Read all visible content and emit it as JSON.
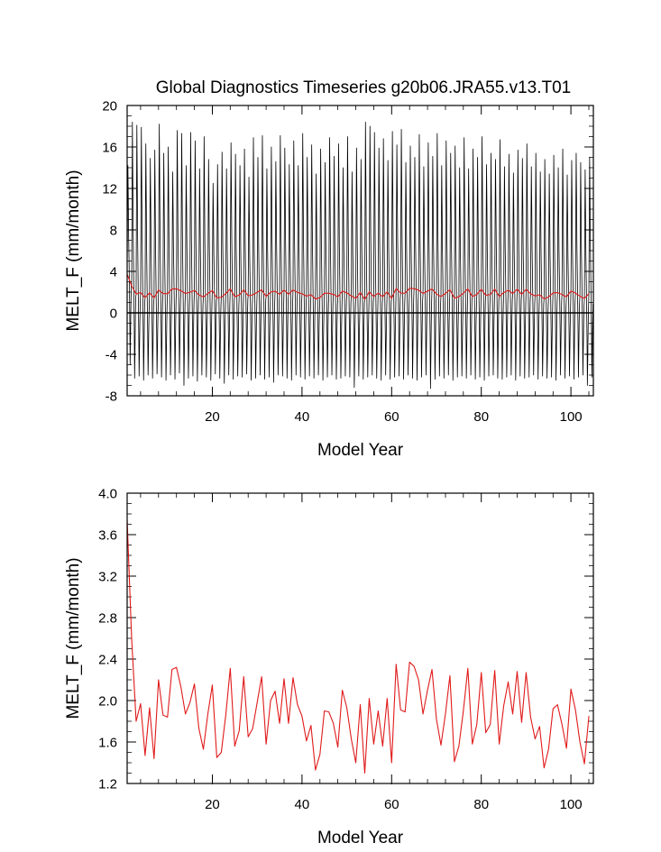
{
  "title": "Global Diagnostics Timeseries g20b06.JRA55.v13.T01",
  "chart_data": [
    {
      "type": "line",
      "title": "Global Diagnostics Timeseries g20b06.JRA55.v13.T01",
      "xlabel": "Model Year",
      "ylabel": "MELT_F (mm/month)",
      "xlim": [
        1,
        105
      ],
      "ylim": [
        -8,
        20
      ],
      "x_ticks": [
        20,
        40,
        60,
        80,
        100
      ],
      "y_ticks": [
        -8,
        -4,
        0,
        4,
        8,
        12,
        16,
        20
      ],
      "y_tick_labels": [
        "-8",
        "-4",
        "0",
        "4",
        "8",
        "12",
        "16",
        "20"
      ],
      "zero_line": true,
      "monthly_peaks": [
        14.2,
        18.4,
        18.1,
        17.9,
        16.3,
        14.9,
        15.7,
        18.2,
        15.4,
        16.0,
        13.6,
        17.6,
        17.3,
        14.2,
        17.4,
        16.6,
        13.9,
        17.0,
        14.8,
        12.5,
        14.3,
        15.5,
        13.9,
        16.4,
        15.3,
        14.2,
        15.8,
        13.1,
        16.9,
        15.0,
        17.1,
        13.9,
        16.0,
        14.6,
        17.1,
        15.9,
        14.3,
        16.6,
        14.2,
        17.3,
        15.0,
        16.2,
        13.4,
        15.8,
        14.5,
        16.9,
        15.1,
        16.3,
        14.0,
        17.0,
        13.6,
        15.9,
        14.8,
        18.4,
        18.0,
        17.4,
        15.9,
        16.8,
        14.7,
        17.5,
        16.2,
        17.7,
        14.5,
        16.1,
        15.0,
        17.2,
        14.1,
        16.4,
        15.1,
        17.3,
        14.2,
        16.6,
        15.4,
        16.1,
        14.0,
        16.9,
        13.9,
        15.8,
        15.0,
        17.0,
        14.3,
        15.4,
        14.8,
        16.7,
        14.1,
        15.3,
        13.5,
        15.7,
        14.9,
        16.3,
        14.1,
        15.4,
        13.6,
        14.8,
        13.4,
        15.2,
        14.0,
        15.8,
        13.3,
        14.7,
        15.4,
        14.5,
        13.8,
        15.0
      ],
      "monthly_troughs": [
        -5.0,
        -6.3,
        -6.1,
        -6.5,
        -6.0,
        -6.3,
        -5.9,
        -6.2,
        -6.5,
        -6.0,
        -6.4,
        -5.8,
        -7.0,
        -6.3,
        -6.1,
        -6.6,
        -6.0,
        -6.2,
        -6.5,
        -5.9,
        -6.3,
        -6.8,
        -6.0,
        -6.4,
        -6.1,
        -6.2,
        -5.9,
        -6.5,
        -6.3,
        -6.0,
        -6.4,
        -6.2,
        -6.7,
        -6.0,
        -6.1,
        -6.3,
        -6.5,
        -6.0,
        -6.2,
        -6.4,
        -6.1,
        -6.3,
        -6.0,
        -6.5,
        -6.2,
        -6.0,
        -6.4,
        -6.3,
        -6.1,
        -6.2,
        -7.2,
        -6.1,
        -6.4,
        -6.2,
        -6.0,
        -6.3,
        -6.5,
        -6.0,
        -6.4,
        -6.2,
        -6.1,
        -6.4,
        -6.0,
        -6.3,
        -6.5,
        -6.2,
        -6.0,
        -7.3,
        -6.4,
        -6.1,
        -6.3,
        -6.0,
        -6.5,
        -6.2,
        -6.1,
        -6.3,
        -6.0,
        -6.4,
        -6.2,
        -6.5,
        -6.1,
        -6.0,
        -6.3,
        -6.4,
        -6.2,
        -6.0,
        -6.5,
        -6.1,
        -6.3,
        -6.2,
        -6.0,
        -6.4,
        -6.1,
        -6.3,
        -6.2,
        -6.5,
        -6.0,
        -6.3,
        -6.1,
        -6.4,
        -6.2,
        -6.0,
        -7.0,
        -6.2
      ],
      "series": [
        {
          "color": "#e01a1a",
          "x": [
            1,
            2,
            3,
            4,
            5,
            6,
            7,
            8,
            9,
            10,
            11,
            12,
            13,
            14,
            15,
            16,
            17,
            18,
            19,
            20,
            21,
            22,
            23,
            24,
            25,
            26,
            27,
            28,
            29,
            30,
            31,
            32,
            33,
            34,
            35,
            36,
            37,
            38,
            39,
            40,
            41,
            42,
            43,
            44,
            45,
            46,
            47,
            48,
            49,
            50,
            51,
            52,
            53,
            54,
            55,
            56,
            57,
            58,
            59,
            60,
            61,
            62,
            63,
            64,
            65,
            66,
            67,
            68,
            69,
            70,
            71,
            72,
            73,
            74,
            75,
            76,
            77,
            78,
            79,
            80,
            81,
            82,
            83,
            84,
            85,
            86,
            87,
            88,
            89,
            90,
            91,
            92,
            93,
            94,
            95,
            96,
            97,
            98,
            99,
            100,
            101,
            102,
            103,
            104
          ],
          "values": [
            3.74,
            2.6,
            1.8,
            1.97,
            1.47,
            1.93,
            1.44,
            2.2,
            1.86,
            1.84,
            2.3,
            2.32,
            2.13,
            1.87,
            1.98,
            2.16,
            1.73,
            1.53,
            1.87,
            2.15,
            1.45,
            1.5,
            1.86,
            2.31,
            1.56,
            1.71,
            2.23,
            1.65,
            1.73,
            1.98,
            2.23,
            1.58,
            2.0,
            2.09,
            1.78,
            2.21,
            1.78,
            2.22,
            1.96,
            1.85,
            1.61,
            1.76,
            1.33,
            1.48,
            1.9,
            1.89,
            1.78,
            1.55,
            2.1,
            1.93,
            1.63,
            1.4,
            1.96,
            1.3,
            2.02,
            1.58,
            1.9,
            1.56,
            2.02,
            1.4,
            2.35,
            1.91,
            1.89,
            2.37,
            2.33,
            2.2,
            1.87,
            2.1,
            2.3,
            1.82,
            1.57,
            1.87,
            2.24,
            1.41,
            1.56,
            1.9,
            2.31,
            1.58,
            1.77,
            2.27,
            1.69,
            1.77,
            2.29,
            1.58,
            1.95,
            2.18,
            1.87,
            2.28,
            1.79,
            2.27,
            1.84,
            1.63,
            1.75,
            1.35,
            1.53,
            1.92,
            1.96,
            1.77,
            1.54,
            2.11,
            1.91,
            1.6,
            1.39,
            1.85
          ]
        }
      ]
    },
    {
      "type": "line",
      "xlabel": "Model Year",
      "ylabel": "MELT_F (mm/month)",
      "xlim": [
        1,
        105
      ],
      "ylim": [
        1.2,
        4.0
      ],
      "x_ticks": [
        20,
        40,
        60,
        80,
        100
      ],
      "y_ticks": [
        1.2,
        1.6,
        2.0,
        2.4,
        2.8,
        3.2,
        3.6,
        4.0
      ],
      "y_tick_labels": [
        "1.2",
        "1.6",
        "2.0",
        "2.4",
        "2.8",
        "3.2",
        "3.6",
        "4.0"
      ],
      "series": [
        {
          "color": "#e01a1a",
          "x": [
            1,
            2,
            3,
            4,
            5,
            6,
            7,
            8,
            9,
            10,
            11,
            12,
            13,
            14,
            15,
            16,
            17,
            18,
            19,
            20,
            21,
            22,
            23,
            24,
            25,
            26,
            27,
            28,
            29,
            30,
            31,
            32,
            33,
            34,
            35,
            36,
            37,
            38,
            39,
            40,
            41,
            42,
            43,
            44,
            45,
            46,
            47,
            48,
            49,
            50,
            51,
            52,
            53,
            54,
            55,
            56,
            57,
            58,
            59,
            60,
            61,
            62,
            63,
            64,
            65,
            66,
            67,
            68,
            69,
            70,
            71,
            72,
            73,
            74,
            75,
            76,
            77,
            78,
            79,
            80,
            81,
            82,
            83,
            84,
            85,
            86,
            87,
            88,
            89,
            90,
            91,
            92,
            93,
            94,
            95,
            96,
            97,
            98,
            99,
            100,
            101,
            102,
            103,
            104
          ],
          "values": [
            3.74,
            2.6,
            1.8,
            1.97,
            1.47,
            1.93,
            1.44,
            2.2,
            1.86,
            1.84,
            2.3,
            2.32,
            2.13,
            1.87,
            1.98,
            2.16,
            1.73,
            1.53,
            1.87,
            2.15,
            1.45,
            1.5,
            1.86,
            2.31,
            1.56,
            1.71,
            2.23,
            1.65,
            1.73,
            1.98,
            2.23,
            1.58,
            2.0,
            2.09,
            1.78,
            2.21,
            1.78,
            2.22,
            1.96,
            1.85,
            1.61,
            1.76,
            1.33,
            1.48,
            1.9,
            1.89,
            1.78,
            1.55,
            2.1,
            1.93,
            1.63,
            1.4,
            1.96,
            1.3,
            2.02,
            1.58,
            1.9,
            1.56,
            2.02,
            1.4,
            2.35,
            1.91,
            1.89,
            2.37,
            2.33,
            2.2,
            1.87,
            2.1,
            2.3,
            1.82,
            1.57,
            1.87,
            2.24,
            1.41,
            1.56,
            1.9,
            2.31,
            1.58,
            1.77,
            2.27,
            1.69,
            1.77,
            2.29,
            1.58,
            1.95,
            2.18,
            1.87,
            2.28,
            1.79,
            2.27,
            1.84,
            1.63,
            1.75,
            1.35,
            1.53,
            1.92,
            1.96,
            1.77,
            1.54,
            2.11,
            1.91,
            1.6,
            1.39,
            1.85
          ]
        }
      ]
    }
  ]
}
